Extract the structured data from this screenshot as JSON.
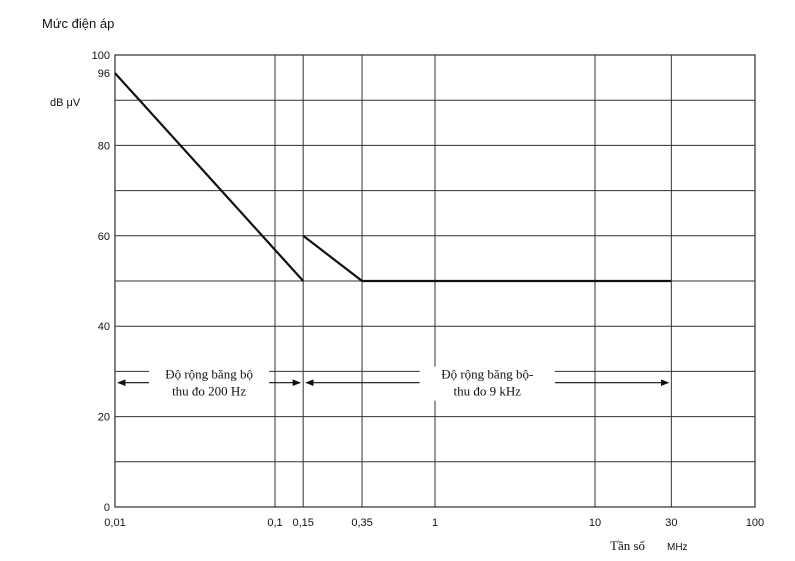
{
  "chart_data": {
    "type": "line",
    "title": "Mức điện áp",
    "ylabel": "dB  μV",
    "xlabel": "Tần số",
    "xunit": "MHz",
    "x_scale": "log",
    "xlim": [
      0.01,
      100
    ],
    "ylim": [
      0,
      100
    ],
    "grid": true,
    "y_ticks": [
      0,
      20,
      40,
      60,
      80,
      96,
      100
    ],
    "y_tick_labels": [
      "0",
      "20",
      "40",
      "60",
      "80",
      "96",
      "100"
    ],
    "y_gridlines": [
      0,
      10,
      20,
      30,
      40,
      50,
      60,
      70,
      80,
      90,
      100
    ],
    "x_ticks": [
      0.01,
      0.1,
      0.15,
      0.35,
      1,
      10,
      30,
      100
    ],
    "x_tick_labels": [
      "0,01",
      "0,1",
      "0,15",
      "0,35",
      "1",
      "10",
      "30",
      "100"
    ],
    "series": [
      {
        "values": [
          [
            0.01,
            96
          ],
          [
            0.15,
            50
          ]
        ]
      },
      {
        "values": [
          [
            0.15,
            60
          ],
          [
            0.35,
            50
          ],
          [
            30,
            50
          ]
        ]
      }
    ],
    "annotations": [
      {
        "lines": [
          "Độ rộng băng bộ",
          "thu đo 200 Hz"
        ],
        "x_from": 0.01,
        "x_to": 0.15,
        "y": 27.5
      },
      {
        "lines": [
          "Độ rộng băng bộ-",
          "thu đo 9 kHz"
        ],
        "x_from": 0.15,
        "x_to": 30,
        "y": 27.5
      }
    ]
  }
}
